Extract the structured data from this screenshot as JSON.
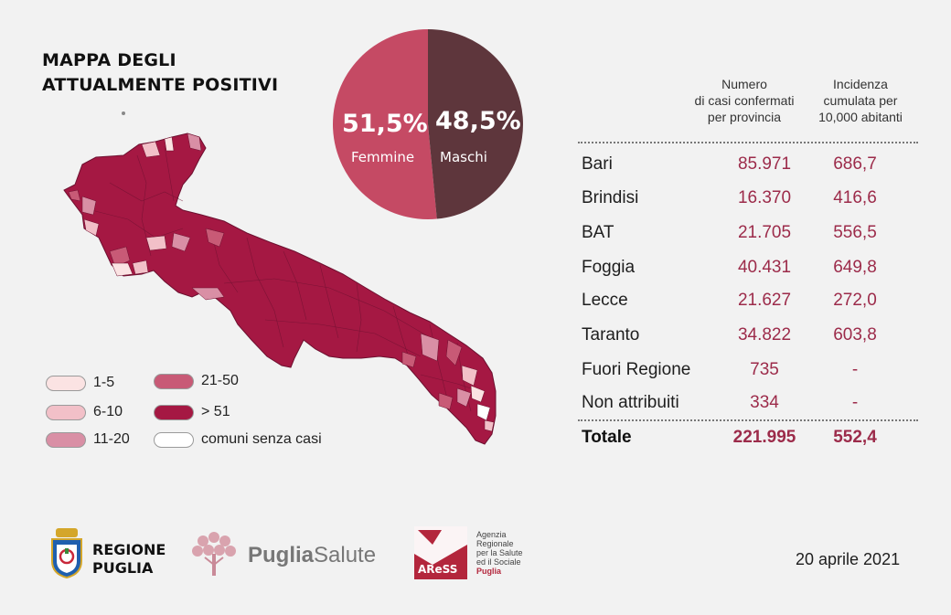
{
  "title": {
    "line1": "MAPPA DEGLI",
    "line2": "ATTUALMENTE POSITIVI"
  },
  "gender": {
    "female_pct": "51,5%",
    "female_label": "Femmine",
    "female_value": 51.5,
    "female_color": "#c54a64",
    "male_pct": "48,5%",
    "male_label": "Maschi",
    "male_value": 48.5,
    "male_color": "#5e363c"
  },
  "legend": [
    {
      "label": "1-5",
      "color": "#fbe3e3"
    },
    {
      "label": "6-10",
      "color": "#f2c0c8"
    },
    {
      "label": "11-20",
      "color": "#d98fa5"
    },
    {
      "label": "21-50",
      "color": "#c85a76"
    },
    {
      "label": "> 51",
      "color": "#a51843"
    },
    {
      "label": "comuni senza casi",
      "color": "#ffffff"
    }
  ],
  "table": {
    "header_cases": [
      "Numero",
      "di casi confermati",
      "per provincia"
    ],
    "header_incidence": [
      "Incidenza",
      "cumulata per",
      "10,000 abitanti"
    ],
    "rows": [
      {
        "name": "Bari",
        "cases": "85.971",
        "incidence": "686,7"
      },
      {
        "name": "Brindisi",
        "cases": "16.370",
        "incidence": "416,6"
      },
      {
        "name": "BAT",
        "cases": "21.705",
        "incidence": "556,5"
      },
      {
        "name": "Foggia",
        "cases": "40.431",
        "incidence": "649,8"
      },
      {
        "name": "Lecce",
        "cases": "21.627",
        "incidence": "272,0"
      },
      {
        "name": "Taranto",
        "cases": "34.822",
        "incidence": "603,8"
      },
      {
        "name": "Fuori Regione",
        "cases": "735",
        "incidence": "-"
      },
      {
        "name": "Non attribuiti",
        "cases": "334",
        "incidence": "-"
      }
    ],
    "total": {
      "name": "Totale",
      "cases": "221.995",
      "incidence": "552,4"
    }
  },
  "logos": {
    "regione_line1": "REGIONE",
    "regione_line2": "PUGLIA",
    "puglia_salute_a": "Puglia",
    "puglia_salute_b": "Salute",
    "aress_mark": "AReSS",
    "aress_text": [
      "Agenzia",
      "Regionale",
      "per la Salute",
      "ed il Sociale"
    ],
    "aress_region": "Puglia"
  },
  "date": "20 aprile 2021"
}
